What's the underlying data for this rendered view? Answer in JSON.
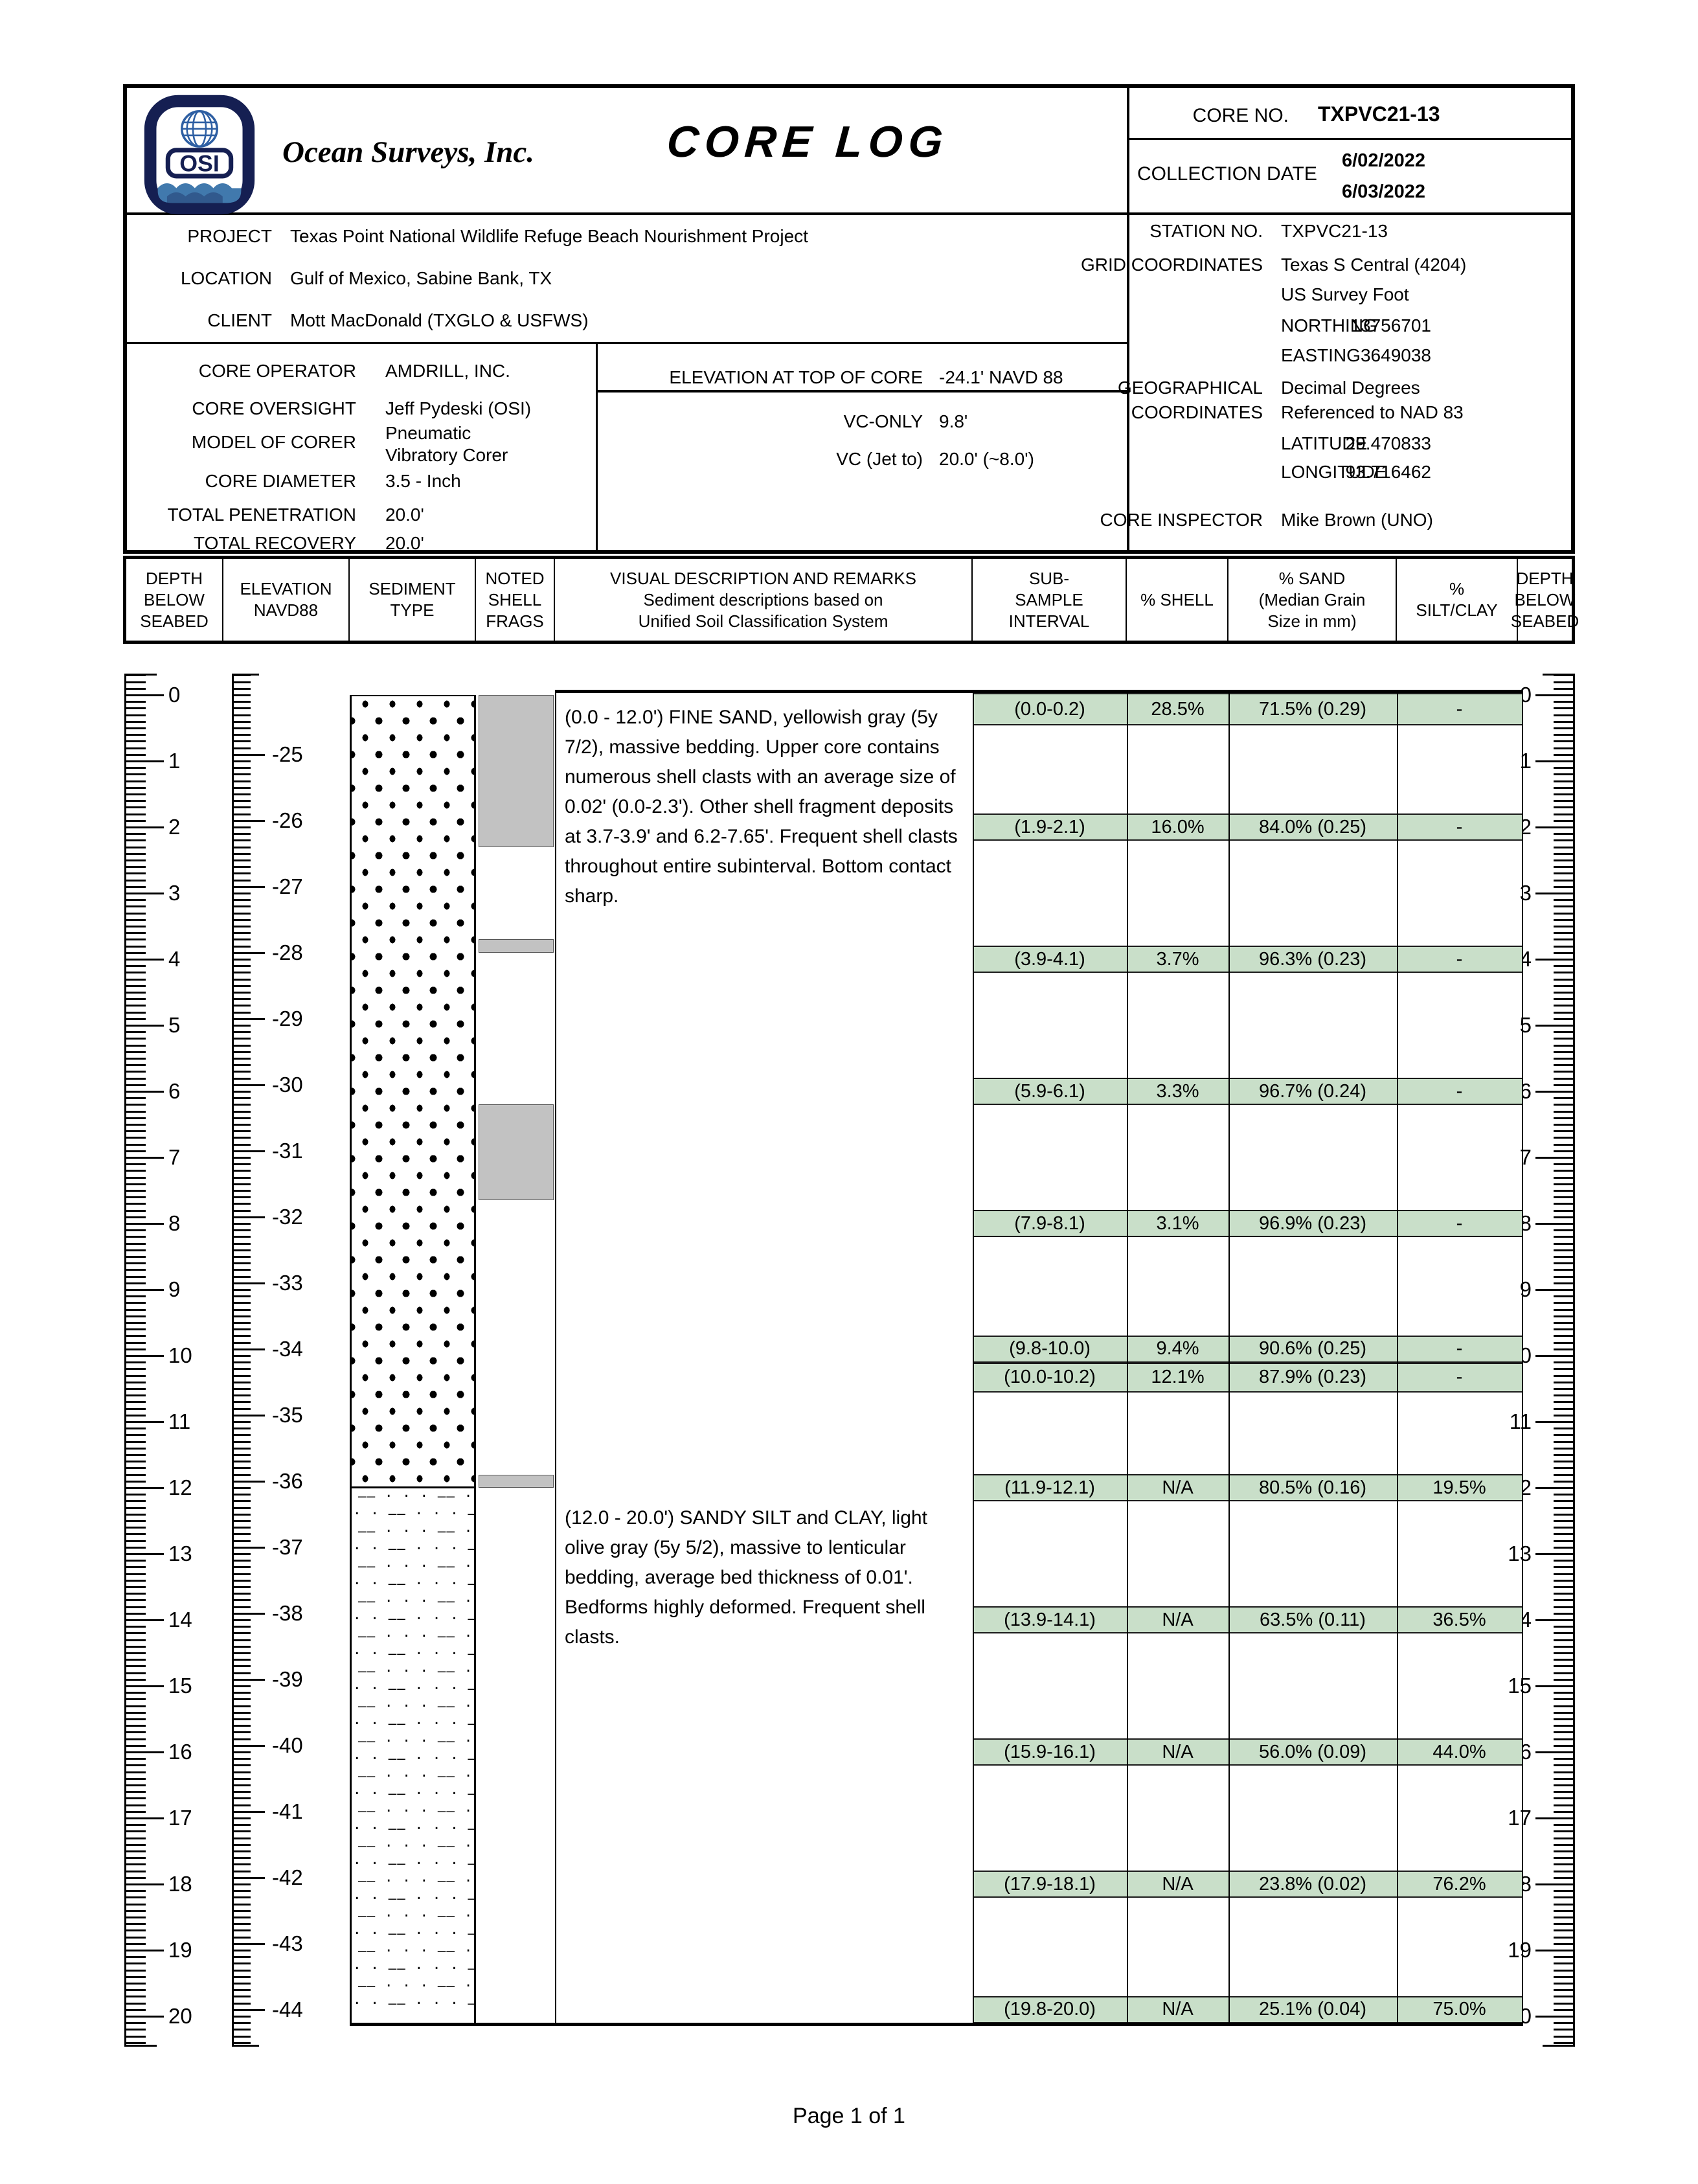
{
  "header": {
    "logo_text": "OSI",
    "company": "Ocean Surveys, Inc.",
    "title": "CORE  LOG",
    "core_no_label": "CORE NO.",
    "core_no_value": "TXPVC21-13",
    "collection_date_label": "COLLECTION DATE",
    "collection_date_1": "6/02/2022",
    "collection_date_2": "6/03/2022",
    "project_label": "PROJECT",
    "project_value": "Texas Point National Wildlife Refuge Beach Nourishment Project",
    "location_label": "LOCATION",
    "location_value": "Gulf of Mexico, Sabine Bank, TX",
    "client_label": "CLIENT",
    "client_value": "Mott MacDonald (TXGLO & USFWS)",
    "core_operator_label": "CORE OPERATOR",
    "core_operator_value": "AMDRILL, INC.",
    "core_oversight_label": "CORE OVERSIGHT",
    "core_oversight_value": "Jeff Pydeski (OSI)",
    "model_of_corer_label": "MODEL OF CORER",
    "model_of_corer_value": "Pneumatic Vibratory Corer",
    "core_diameter_label": "CORE DIAMETER",
    "core_diameter_value": "3.5 - Inch",
    "total_penetration_label": "TOTAL PENETRATION",
    "total_penetration_value": "20.0'",
    "total_recovery_label": "TOTAL RECOVERY",
    "total_recovery_value": "20.0'",
    "elevation_label": "ELEVATION AT TOP OF CORE",
    "elevation_value": "-24.1'  NAVD 88",
    "vc_only_label": "VC-ONLY",
    "vc_only_value": "9.8'",
    "vc_jet_label": "VC (Jet to)",
    "vc_jet_value": "20.0' (~8.0')",
    "station_label": "STATION NO.",
    "station_value": "TXPVC21-13",
    "grid_label": "GRID COORDINATES",
    "grid_value_1": "Texas S Central (4204)",
    "grid_value_2": "US Survey Foot",
    "northing_label": "NORTHING",
    "northing_value": "13756701",
    "easting_label": "EASTING",
    "easting_value": "3649038",
    "geo_label_1": "GEOGRAPHICAL",
    "geo_label_2": "COORDINATES",
    "geo_value_1": "Decimal Degrees",
    "geo_value_2": "Referenced to NAD 83",
    "latitude_label": "LATITUDE",
    "latitude_value": "29.470833",
    "longitude_label": "LONGITUDE",
    "longitude_value": "93.716462",
    "inspector_label": "CORE INSPECTOR",
    "inspector_value": "Mike Brown (UNO)"
  },
  "table_header": {
    "depth": [
      "DEPTH",
      "BELOW",
      "SEABED"
    ],
    "elevation": [
      "ELEVATION",
      "NAVD88"
    ],
    "sediment": [
      "SEDIMENT",
      "TYPE"
    ],
    "shell": [
      "NOTED",
      "SHELL",
      "FRAGS"
    ],
    "visual": [
      "VISUAL DESCRIPTION AND REMARKS",
      "Sediment descriptions based on",
      "Unified Soil Classification System"
    ],
    "subsample": [
      "SUB-",
      "SAMPLE",
      "INTERVAL"
    ],
    "pct_shell": [
      "% SHELL"
    ],
    "pct_sand": [
      "% SAND",
      "(Median Grain",
      "Size in mm)"
    ],
    "pct_silt": [
      "%",
      "SILT/CLAY"
    ],
    "depth2": [
      "DEPTH",
      "BELOW",
      "SEABED"
    ]
  },
  "log": {
    "depth_axis": {
      "min": 0,
      "max": 20,
      "unit": "feet below seabed"
    },
    "elevation_axis": {
      "top_elevation": -24.1,
      "label_from": -25,
      "label_to": -44,
      "datum": "NAVD88"
    },
    "units": [
      {
        "from": 0.0,
        "to": 12.0,
        "pattern": "fine-sand",
        "description": "(0.0 - 12.0') FINE SAND, yellowish gray (5y 7/2), massive bedding. Upper core contains numerous shell clasts with an average size of 0.02' (0.0-2.3'). Other shell fragment deposits at 3.7-3.9' and 6.2-7.65'. Frequent shell clasts throughout entire subinterval. Bottom contact sharp."
      },
      {
        "from": 12.0,
        "to": 20.0,
        "pattern": "sandy-silt-clay",
        "description": "(12.0 - 20.0') SANDY SILT and CLAY, light olive gray (5y 5/2), massive to lenticular bedding, average bed thickness of 0.01'. Bedforms highly deformed. Frequent shell clasts."
      }
    ],
    "shell_blocks": [
      {
        "from": 0.0,
        "to": 2.3
      },
      {
        "from": 3.7,
        "to": 3.9
      },
      {
        "from": 6.2,
        "to": 7.65
      },
      {
        "from": 11.8,
        "to": 12.0
      }
    ],
    "subsamples": [
      {
        "from": 0.0,
        "to": 0.2,
        "interval": "(0.0-0.2)",
        "shell": "28.5%",
        "sand": "71.5% (0.29)",
        "silt_clay": "-"
      },
      {
        "from": 1.9,
        "to": 2.1,
        "interval": "(1.9-2.1)",
        "shell": "16.0%",
        "sand": "84.0% (0.25)",
        "silt_clay": "-"
      },
      {
        "from": 3.9,
        "to": 4.1,
        "interval": "(3.9-4.1)",
        "shell": "3.7%",
        "sand": "96.3% (0.23)",
        "silt_clay": "-"
      },
      {
        "from": 5.9,
        "to": 6.1,
        "interval": "(5.9-6.1)",
        "shell": "3.3%",
        "sand": "96.7% (0.24)",
        "silt_clay": "-"
      },
      {
        "from": 7.9,
        "to": 8.1,
        "interval": "(7.9-8.1)",
        "shell": "3.1%",
        "sand": "96.9% (0.23)",
        "silt_clay": "-"
      },
      {
        "from": 9.8,
        "to": 10.0,
        "interval": "(9.8-10.0)",
        "shell": "9.4%",
        "sand": "90.6% (0.25)",
        "silt_clay": "-"
      },
      {
        "from": 10.0,
        "to": 10.2,
        "interval": "(10.0-10.2)",
        "shell": "12.1%",
        "sand": "87.9% (0.23)",
        "silt_clay": "-"
      },
      {
        "from": 11.9,
        "to": 12.1,
        "interval": "(11.9-12.1)",
        "shell": "N/A",
        "sand": "80.5% (0.16)",
        "silt_clay": "19.5%"
      },
      {
        "from": 13.9,
        "to": 14.1,
        "interval": "(13.9-14.1)",
        "shell": "N/A",
        "sand": "63.5% (0.11)",
        "silt_clay": "36.5%"
      },
      {
        "from": 15.9,
        "to": 16.1,
        "interval": "(15.9-16.1)",
        "shell": "N/A",
        "sand": "56.0% (0.09)",
        "silt_clay": "44.0%"
      },
      {
        "from": 17.9,
        "to": 18.1,
        "interval": "(17.9-18.1)",
        "shell": "N/A",
        "sand": "23.8% (0.02)",
        "silt_clay": "76.2%"
      },
      {
        "from": 19.8,
        "to": 20.0,
        "interval": "(19.8-20.0)",
        "shell": "N/A",
        "sand": "25.1% (0.04)",
        "silt_clay": "75.0%"
      }
    ],
    "colors": {
      "highlight": "#c9dfc9",
      "shell_block": "#c2c2c2",
      "logo_navy": "#151f52",
      "logo_blue": "#2e5fa3"
    }
  },
  "page": {
    "footer": "Page 1 of 1"
  }
}
